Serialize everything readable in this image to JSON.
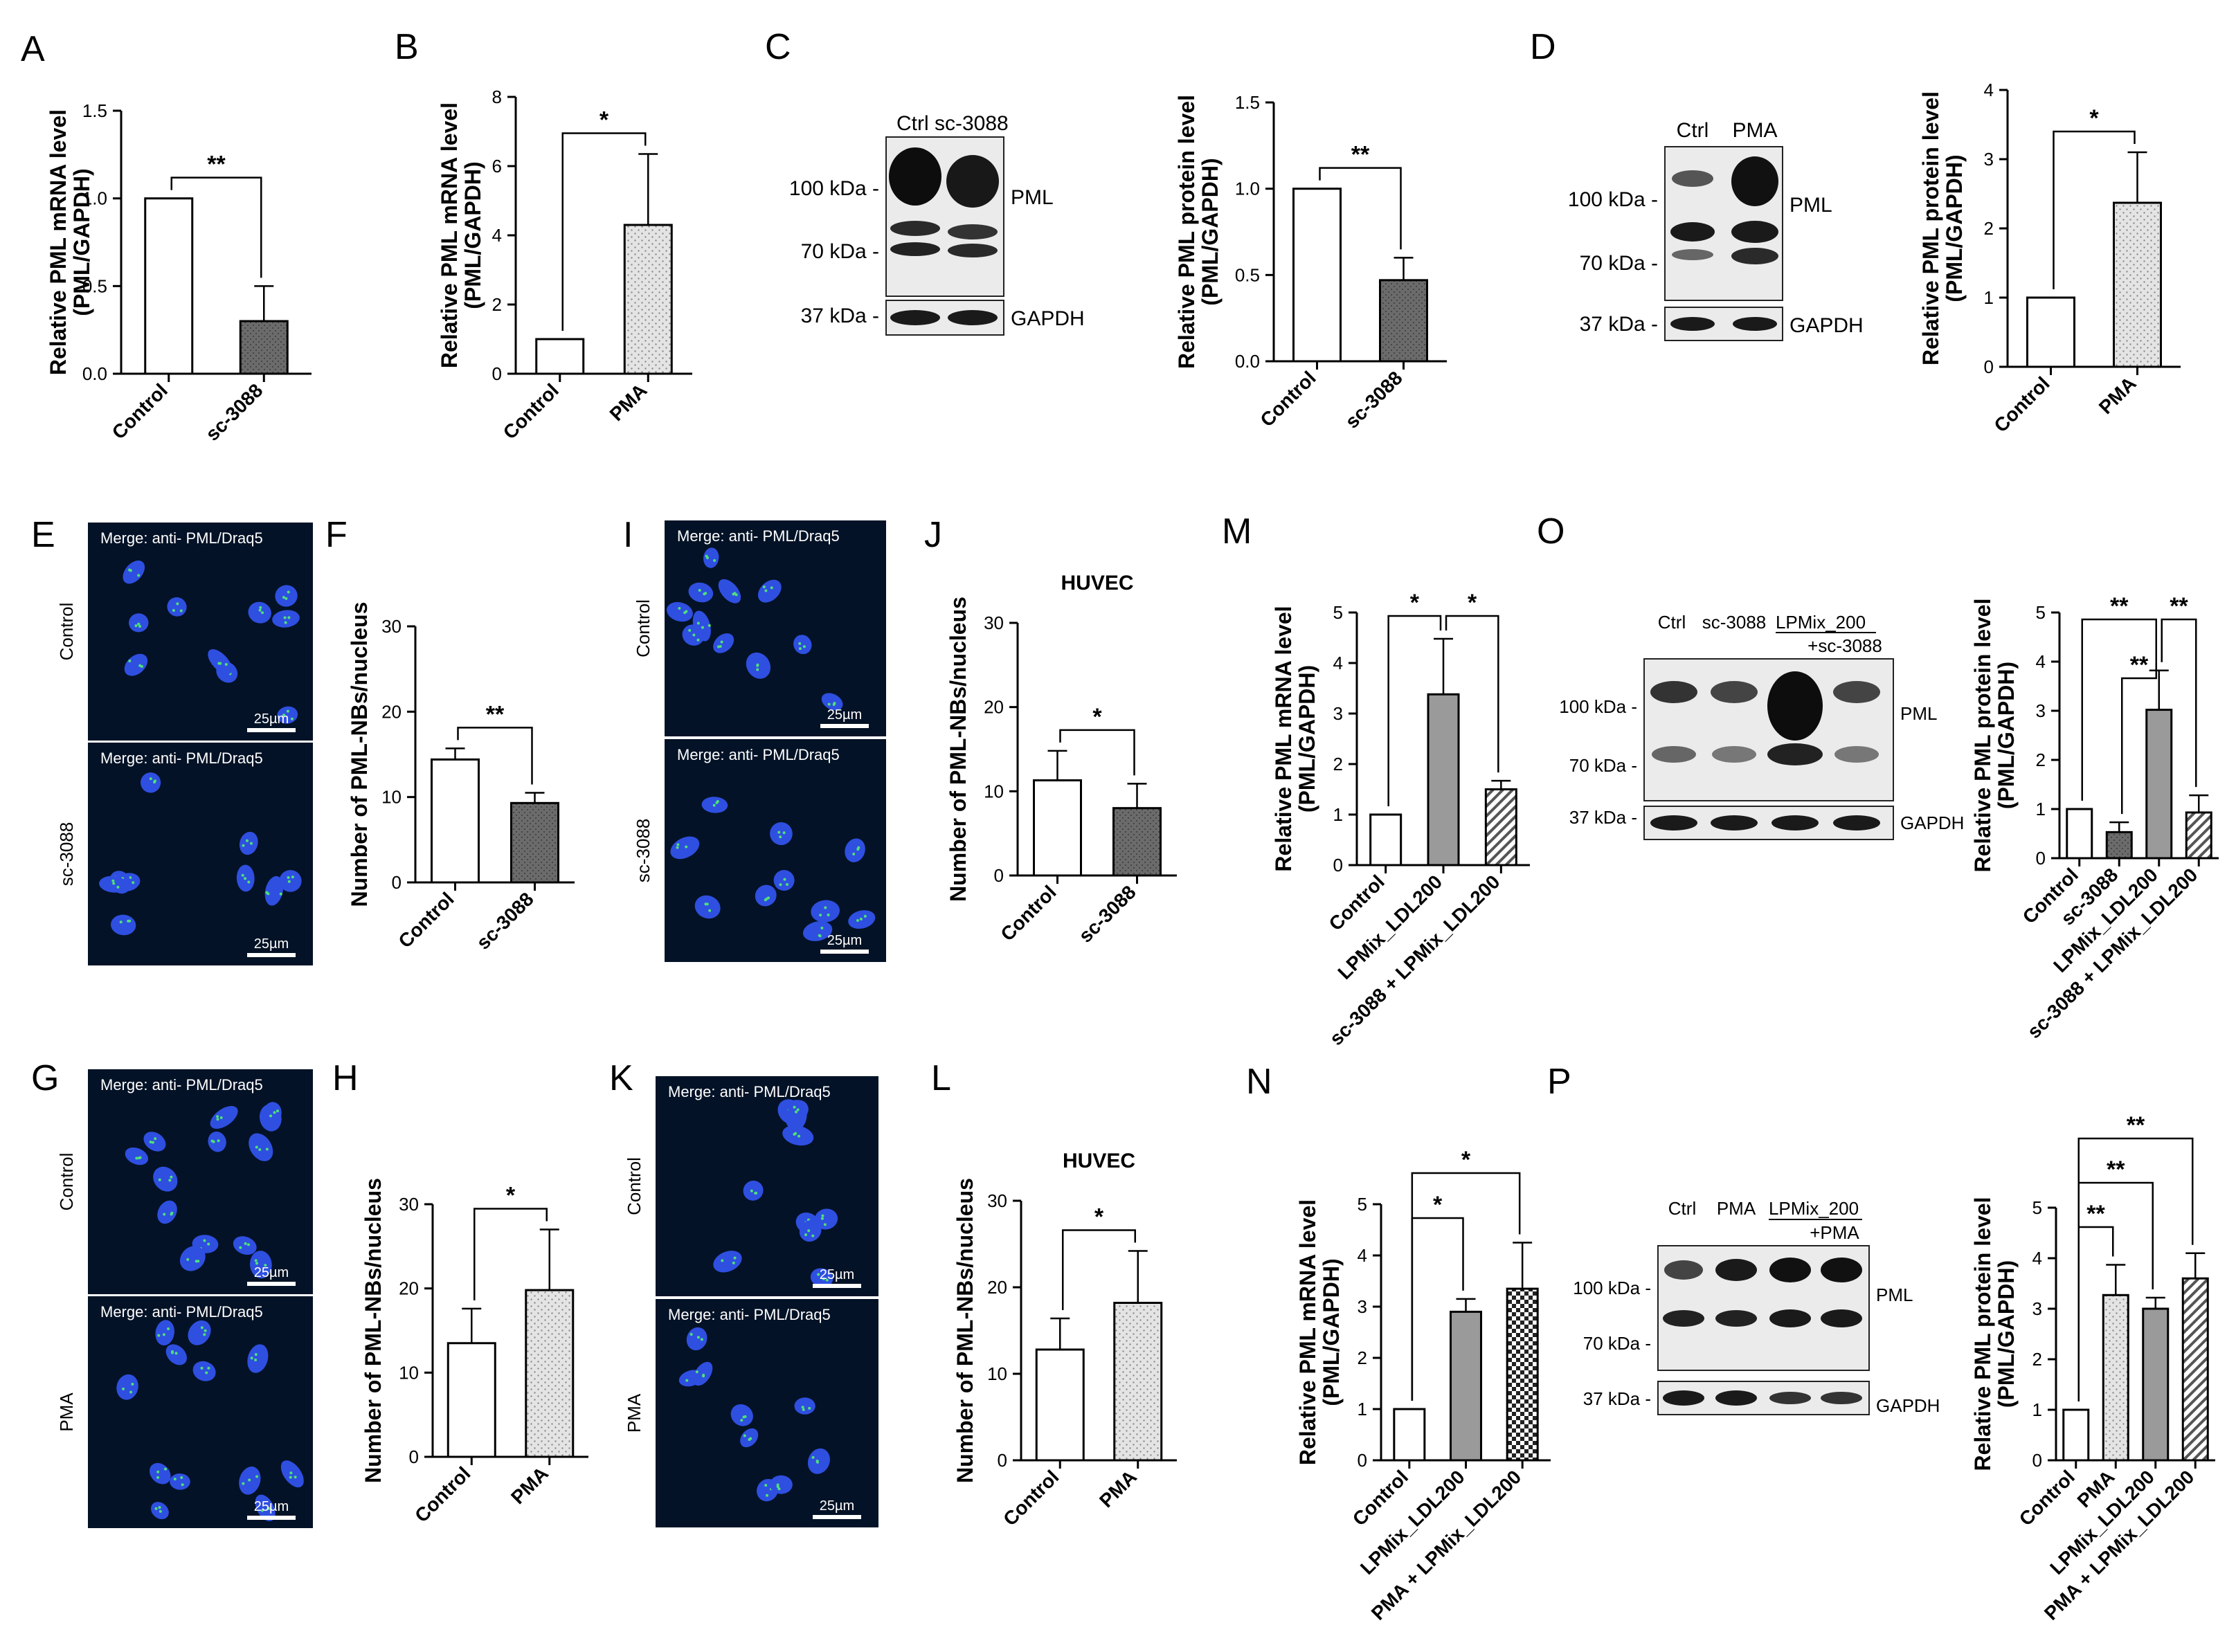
{
  "colors": {
    "axis": "#000000",
    "bar_dark": "#6b6b6b",
    "bar_gray": "#9a9a9a",
    "bar_light": "#e4e4e4",
    "micro_bg": "#031226",
    "nucleus": "#2f4fe0",
    "speckle": "#4fe07a",
    "blot_bg": "#ebebeb"
  },
  "panel_letters": [
    "A",
    "B",
    "C",
    "D",
    "E",
    "F",
    "G",
    "H",
    "I",
    "J",
    "K",
    "L",
    "M",
    "N",
    "O",
    "P"
  ],
  "blots": [
    {
      "id": "C",
      "lanes": [
        "Ctrl sc-3088"
      ],
      "markers": [
        "100 kDa -",
        "70 kDa -",
        "37 kDa -"
      ],
      "bands": [
        "PML",
        "GAPDH"
      ]
    },
    {
      "id": "D",
      "lanes": [
        "Ctrl",
        "PMA"
      ],
      "markers": [
        "100 kDa -",
        "70 kDa -",
        "37 kDa -"
      ],
      "bands": [
        "PML",
        "GAPDH"
      ]
    },
    {
      "id": "O",
      "lanes": [
        "Ctrl",
        "sc-3088",
        "LPMix_200",
        "+sc-3088"
      ],
      "markers": [
        "100 kDa -",
        "70 kDa -",
        "37 kDa -"
      ],
      "bands": [
        "PML",
        "GAPDH"
      ]
    },
    {
      "id": "P",
      "lanes": [
        "Ctrl",
        "PMA",
        "LPMix_200",
        "+PMA"
      ],
      "markers": [
        "100 kDa -",
        "70 kDa -",
        "37 kDa -"
      ],
      "bands": [
        "PML",
        "GAPDH"
      ]
    }
  ],
  "micrographs": [
    {
      "id": "E-control",
      "caption": "Merge: anti- PML/Draq5",
      "side": "Control",
      "scale": "25µm"
    },
    {
      "id": "E-sc3088",
      "caption": "Merge: anti- PML/Draq5",
      "side": "sc-3088",
      "scale": "25µm"
    },
    {
      "id": "G-control",
      "caption": "Merge: anti- PML/Draq5",
      "side": "Control",
      "scale": "25µm"
    },
    {
      "id": "G-pma",
      "caption": "Merge: anti- PML/Draq5",
      "side": "PMA",
      "scale": "25µm"
    },
    {
      "id": "I-control",
      "caption": "Merge: anti- PML/Draq5",
      "side": "Control",
      "scale": "25µm"
    },
    {
      "id": "I-sc3088",
      "caption": "Merge: anti- PML/Draq5",
      "side": "sc-3088",
      "scale": "25µm"
    },
    {
      "id": "K-control",
      "caption": "Merge: anti- PML/Draq5",
      "side": "Control",
      "scale": "25µm"
    },
    {
      "id": "K-pma",
      "caption": "Merge: anti- PML/Draq5",
      "side": "PMA",
      "scale": "25µm"
    }
  ],
  "chart_data": [
    {
      "panel": "A",
      "type": "bar",
      "title": "",
      "ylabel": [
        "Relative PML mRNA level",
        "(PML/GAPDH)"
      ],
      "ylim": [
        0,
        1.5
      ],
      "yticks": [
        "0.0",
        "0.5",
        "1.0",
        "1.5"
      ],
      "categories": [
        "Control",
        "sc-3088"
      ],
      "values": [
        1.0,
        0.3
      ],
      "errors": [
        0,
        0.2
      ],
      "fills": [
        "white",
        "dark"
      ],
      "significance": [
        {
          "from": 0,
          "to": 1,
          "label": "**"
        }
      ]
    },
    {
      "panel": "B",
      "type": "bar",
      "title": "",
      "ylabel": [
        "Relative PML mRNA level",
        "(PML/GAPDH)"
      ],
      "ylim": [
        0,
        8
      ],
      "yticks": [
        "0",
        "2",
        "4",
        "6",
        "8"
      ],
      "categories": [
        "Control",
        "PMA"
      ],
      "values": [
        1.0,
        4.3
      ],
      "errors": [
        0,
        2.05
      ],
      "fills": [
        "white",
        "light"
      ],
      "significance": [
        {
          "from": 0,
          "to": 1,
          "label": "*"
        }
      ]
    },
    {
      "panel": "C",
      "type": "bar",
      "title": "",
      "ylabel": [
        "Relative PML protein level",
        "(PML/GAPDH)"
      ],
      "ylim": [
        0,
        1.5
      ],
      "yticks": [
        "0.0",
        "0.5",
        "1.0",
        "1.5"
      ],
      "categories": [
        "Control",
        "sc-3088"
      ],
      "values": [
        1.0,
        0.47
      ],
      "errors": [
        0,
        0.13
      ],
      "fills": [
        "white",
        "dark"
      ],
      "significance": [
        {
          "from": 0,
          "to": 1,
          "label": "**"
        }
      ]
    },
    {
      "panel": "D",
      "type": "bar",
      "title": "",
      "ylabel": [
        "Relative PML protein level",
        "(PML/GAPDH)"
      ],
      "ylim": [
        0,
        4
      ],
      "yticks": [
        "0",
        "1",
        "2",
        "3",
        "4"
      ],
      "categories": [
        "Control",
        "PMA"
      ],
      "values": [
        1.0,
        2.37
      ],
      "errors": [
        0,
        0.73
      ],
      "fills": [
        "white",
        "light"
      ],
      "significance": [
        {
          "from": 0,
          "to": 1,
          "label": "*"
        }
      ]
    },
    {
      "panel": "F",
      "type": "bar",
      "title": "",
      "ylabel": [
        "Number of PML-NBs/nucleus"
      ],
      "ylim": [
        0,
        30
      ],
      "yticks": [
        "0",
        "10",
        "20",
        "30"
      ],
      "categories": [
        "Control",
        "sc-3088"
      ],
      "values": [
        14.4,
        9.3
      ],
      "errors": [
        1.3,
        1.2
      ],
      "fills": [
        "white",
        "dark"
      ],
      "significance": [
        {
          "from": 0,
          "to": 1,
          "label": "**"
        }
      ]
    },
    {
      "panel": "H",
      "type": "bar",
      "title": "",
      "ylabel": [
        "Number of PML-NBs/nucleus"
      ],
      "ylim": [
        0,
        30
      ],
      "yticks": [
        "0",
        "10",
        "20",
        "30"
      ],
      "categories": [
        "Control",
        "PMA"
      ],
      "values": [
        13.5,
        19.8
      ],
      "errors": [
        4.1,
        7.2
      ],
      "fills": [
        "white",
        "light"
      ],
      "significance": [
        {
          "from": 0,
          "to": 1,
          "label": "*"
        }
      ]
    },
    {
      "panel": "J",
      "type": "bar",
      "title": "HUVEC",
      "ylabel": [
        "Number of PML-NBs/nucleus"
      ],
      "ylim": [
        0,
        30
      ],
      "yticks": [
        "0",
        "10",
        "20",
        "30"
      ],
      "categories": [
        "Control",
        "sc-3088"
      ],
      "values": [
        11.3,
        8.0
      ],
      "errors": [
        3.5,
        2.9
      ],
      "fills": [
        "white",
        "dark"
      ],
      "significance": [
        {
          "from": 0,
          "to": 1,
          "label": "*"
        }
      ]
    },
    {
      "panel": "L",
      "type": "bar",
      "title": "HUVEC",
      "ylabel": [
        "Number of PML-NBs/nucleus"
      ],
      "ylim": [
        0,
        30
      ],
      "yticks": [
        "0",
        "10",
        "20",
        "30"
      ],
      "categories": [
        "Control",
        "PMA"
      ],
      "values": [
        12.8,
        18.2
      ],
      "errors": [
        3.6,
        6.0
      ],
      "fills": [
        "white",
        "light"
      ],
      "significance": [
        {
          "from": 0,
          "to": 1,
          "label": "*"
        }
      ]
    },
    {
      "panel": "M",
      "type": "bar",
      "title": "",
      "ylabel": [
        "Relative PML mRNA level",
        "(PML/GAPDH)"
      ],
      "ylim": [
        0,
        5
      ],
      "yticks": [
        "0",
        "1",
        "2",
        "3",
        "4",
        "5"
      ],
      "categories": [
        "Control",
        "LPMix_LDL200",
        "sc-3088 + LPMix_LDL200"
      ],
      "values": [
        1.0,
        3.38,
        1.5
      ],
      "errors": [
        0,
        1.1,
        0.17
      ],
      "fills": [
        "white",
        "gray",
        "hatch"
      ],
      "significance": [
        {
          "from": 0,
          "to": 1,
          "label": "*"
        },
        {
          "from": 1,
          "to": 2,
          "label": "*"
        }
      ]
    },
    {
      "panel": "N",
      "type": "bar",
      "title": "",
      "ylabel": [
        "Relative PML mRNA level",
        "(PML/GAPDH)"
      ],
      "ylim": [
        0,
        5
      ],
      "yticks": [
        "0",
        "1",
        "2",
        "3",
        "4",
        "5"
      ],
      "categories": [
        "Control",
        "LPMix_LDL200",
        "PMA + LPMix_LDL200"
      ],
      "values": [
        1.0,
        2.9,
        3.35
      ],
      "errors": [
        0,
        0.25,
        0.9
      ],
      "fills": [
        "white",
        "gray",
        "checker"
      ],
      "significance": [
        {
          "from": 0,
          "to": 1,
          "label": "*"
        },
        {
          "from": 0,
          "to": 2,
          "label": "*"
        }
      ]
    },
    {
      "panel": "O",
      "type": "bar",
      "title": "",
      "ylabel": [
        "Relative PML protein level",
        "(PML/GAPDH)"
      ],
      "ylim": [
        0,
        5
      ],
      "yticks": [
        "0",
        "1",
        "2",
        "3",
        "4",
        "5"
      ],
      "categories": [
        "Control",
        "sc-3088",
        "LPMix_LDL200",
        "sc-3088 + LPMix_LDL200"
      ],
      "values": [
        1.0,
        0.53,
        3.02,
        0.93
      ],
      "errors": [
        0,
        0.2,
        0.8,
        0.35
      ],
      "fills": [
        "white",
        "dark",
        "gray",
        "hatch"
      ],
      "significance": [
        {
          "from": 0,
          "to": 2,
          "label": "**"
        },
        {
          "from": 2,
          "to": 3,
          "label": "**"
        },
        {
          "from": 1,
          "to": 2,
          "label": "**"
        }
      ]
    },
    {
      "panel": "P",
      "type": "bar",
      "title": "",
      "ylabel": [
        "Relative PML protein level",
        "(PML/GAPDH)"
      ],
      "ylim": [
        0,
        5
      ],
      "yticks": [
        "0",
        "1",
        "2",
        "3",
        "4",
        "5"
      ],
      "categories": [
        "Control",
        "PMA",
        "LPMix_LDL200",
        "PMA + LPMix_LDL200"
      ],
      "values": [
        1.0,
        3.27,
        3.0,
        3.6
      ],
      "errors": [
        0,
        0.6,
        0.22,
        0.5
      ],
      "fills": [
        "white",
        "light",
        "gray",
        "hatch"
      ],
      "significance": [
        {
          "from": 0,
          "to": 1,
          "label": "**"
        },
        {
          "from": 0,
          "to": 2,
          "label": "**"
        },
        {
          "from": 0,
          "to": 3,
          "label": "**"
        }
      ]
    }
  ]
}
